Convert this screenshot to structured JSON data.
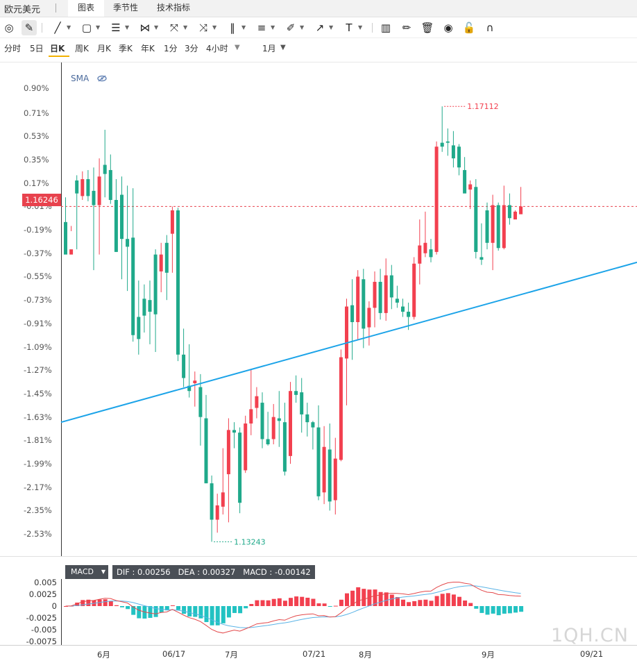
{
  "header": {
    "symbol": "欧元美元",
    "tabs": [
      {
        "label": "图表",
        "active": true
      },
      {
        "label": "季节性",
        "active": false
      },
      {
        "label": "技术指标",
        "active": false
      }
    ]
  },
  "toolbar": {
    "tools": [
      "magnet-icon",
      "pencil-icon",
      "line-icon",
      "rectangle-icon",
      "horizontal-lines-icon",
      "pattern-icon",
      "fork-icon",
      "cross-icon",
      "bars-icon",
      "level-icon",
      "brush-icon",
      "arrow-icon",
      "text-icon",
      "candles-icon",
      "pen-icon",
      "trash-icon",
      "eye-icon",
      "unlock-icon",
      "magnet-u-icon"
    ]
  },
  "periods": {
    "items": [
      "分时",
      "5日",
      "日K",
      "周K",
      "月K",
      "季K",
      "年K",
      "1分",
      "3分",
      "4小时"
    ],
    "active": "日K",
    "range": "1月"
  },
  "indicator": {
    "sma_label": "SMA"
  },
  "price": {
    "current": "1.16246",
    "high_label": "1.17112",
    "low_label": "1.13243"
  },
  "macd": {
    "label": "MACD",
    "dif": "DIF : 0.00256",
    "dea": "DEA : 0.00327",
    "macd": "MACD : -0.00142",
    "yticks": [
      "0.005",
      "0.0025",
      "0",
      "-0.0025",
      "-0.005",
      "-0.0075"
    ]
  },
  "watermark": "1QH.CN",
  "colors": {
    "up": "#f2404f",
    "down": "#1fa98a",
    "trendline": "#1ba3e8",
    "dif": "#e3484a",
    "dea": "#5ab3e6",
    "price_line": "#e8424d"
  },
  "chart_data": {
    "type": "candlestick",
    "y_ticks": [
      "0.90%",
      "0.71%",
      "0.53%",
      "0.35%",
      "0.17%",
      "-0.01%",
      "-0.19%",
      "-0.37%",
      "-0.55%",
      "-0.73%",
      "-0.91%",
      "-1.09%",
      "-1.27%",
      "-1.45%",
      "-1.63%",
      "-1.81%",
      "-1.99%",
      "-2.17%",
      "-2.35%",
      "-2.53%"
    ],
    "x_ticks": [
      "6月",
      "06/17",
      "7月",
      "07/21",
      "8月",
      "9月",
      "09/21"
    ],
    "reference_price": 1.16246,
    "ylim_percent": [
      -2.71,
      1.06
    ],
    "candles": [
      [
        -0.13,
        -0.38,
        0.06,
        -0.27
      ],
      [
        -0.38,
        -0.34,
        -0.2,
        -0.16
      ],
      [
        0.19,
        0.09,
        0.23,
        -0.34
      ],
      [
        0.07,
        0.2,
        0.26,
        0.04
      ],
      [
        0.2,
        0.07,
        0.27,
        0.03
      ],
      [
        0.11,
        0.0,
        0.29,
        -0.5
      ],
      [
        0.0,
        0.22,
        0.36,
        -0.38
      ],
      [
        0.31,
        0.24,
        0.58,
        0.06
      ],
      [
        0.27,
        0.04,
        0.39,
        0.01
      ],
      [
        0.04,
        -0.36,
        0.2,
        -0.36
      ],
      [
        0.08,
        -0.26,
        0.22,
        -0.57
      ],
      [
        -0.26,
        -0.32,
        0.15,
        -0.66
      ],
      [
        -0.25,
        -1.0,
        0.13,
        -1.05
      ],
      [
        -0.86,
        -1.03,
        -0.58,
        -1.15
      ],
      [
        -0.72,
        -0.85,
        -0.61,
        -0.98
      ],
      [
        -0.73,
        -0.82,
        -0.58,
        -1.07
      ],
      [
        -0.38,
        -0.84,
        -0.34,
        -1.13
      ],
      [
        -0.51,
        -0.38,
        -0.29,
        -0.67
      ],
      [
        -0.29,
        -0.52,
        -0.23,
        -0.73
      ],
      [
        -0.22,
        -0.04,
        -0.01,
        -0.52
      ],
      [
        -0.04,
        -1.15,
        -0.02,
        -1.2
      ],
      [
        -1.15,
        -1.33,
        -0.95,
        -1.4
      ],
      [
        -1.39,
        -1.43,
        -1.07,
        -1.48
      ],
      [
        -1.37,
        -1.35,
        -1.28,
        -1.55
      ],
      [
        -1.4,
        -1.63,
        -1.3,
        -1.85
      ],
      [
        -1.64,
        -2.14,
        -1.46,
        -2.14
      ],
      [
        -2.14,
        -2.42,
        -2.08,
        -2.59
      ],
      [
        -2.42,
        -2.31,
        -2.22,
        -2.52
      ],
      [
        -2.32,
        -2.21,
        -1.87,
        -2.38
      ],
      [
        -2.07,
        -1.73,
        -1.64,
        -2.44
      ],
      [
        -1.73,
        -1.75,
        -1.67,
        -1.87
      ],
      [
        -1.75,
        -2.29,
        -1.71,
        -2.37
      ],
      [
        -2.04,
        -1.68,
        -1.62,
        -2.06
      ],
      [
        -1.68,
        -1.57,
        -1.26,
        -1.77
      ],
      [
        -1.56,
        -1.47,
        -1.4,
        -1.64
      ],
      [
        -1.52,
        -1.8,
        -1.44,
        -1.87
      ],
      [
        -1.8,
        -1.84,
        -1.59,
        -1.85
      ],
      [
        -1.8,
        -1.63,
        -1.53,
        -1.84
      ],
      [
        -1.64,
        -1.66,
        -1.43,
        -1.86
      ],
      [
        -1.67,
        -2.05,
        -1.52,
        -2.08
      ],
      [
        -1.93,
        -1.43,
        -1.36,
        -1.99
      ],
      [
        -1.43,
        -1.46,
        -1.31,
        -1.52
      ],
      [
        -1.44,
        -1.61,
        -1.33,
        -1.75
      ],
      [
        -1.61,
        -1.67,
        -1.52,
        -1.78
      ],
      [
        -1.67,
        -1.71,
        -1.66,
        -1.88
      ],
      [
        -1.71,
        -2.24,
        -1.54,
        -2.27
      ],
      [
        -2.21,
        -1.86,
        -1.7,
        -2.3
      ],
      [
        -1.88,
        -2.28,
        -1.68,
        -2.35
      ],
      [
        -2.27,
        -1.95,
        -1.79,
        -2.38
      ],
      [
        -1.96,
        -1.17,
        -1.11,
        -1.97
      ],
      [
        -1.18,
        -0.78,
        -0.72,
        -1.54
      ],
      [
        -0.77,
        -0.9,
        -0.57,
        -1.19
      ],
      [
        -0.9,
        -0.55,
        -0.5,
        -1.04
      ],
      [
        -0.57,
        -0.95,
        -0.49,
        -1.1
      ],
      [
        -0.94,
        -0.79,
        -0.74,
        -1.08
      ],
      [
        -0.79,
        -0.59,
        -0.51,
        -0.94
      ],
      [
        -0.59,
        -0.83,
        -0.49,
        -0.88
      ],
      [
        -0.83,
        -0.54,
        -0.41,
        -0.89
      ],
      [
        -0.54,
        -0.71,
        -0.46,
        -0.8
      ],
      [
        -0.72,
        -0.75,
        -0.62,
        -0.79
      ],
      [
        -0.78,
        -0.82,
        -0.72,
        -0.86
      ],
      [
        -0.82,
        -0.86,
        -0.75,
        -0.96
      ],
      [
        -0.86,
        -0.45,
        -0.4,
        -0.88
      ],
      [
        -0.45,
        -0.31,
        -0.11,
        -0.61
      ],
      [
        -0.37,
        -0.29,
        -0.05,
        -0.4
      ],
      [
        -0.34,
        -0.4,
        -0.26,
        -0.44
      ],
      [
        -0.36,
        0.45,
        0.49,
        -0.38
      ],
      [
        0.48,
        0.45,
        0.76,
        0.41
      ],
      [
        0.49,
        0.48,
        0.59,
        0.38
      ],
      [
        0.46,
        0.36,
        0.57,
        0.29
      ],
      [
        0.45,
        0.29,
        0.47,
        0.23
      ],
      [
        0.27,
        0.09,
        0.37,
        0.13
      ],
      [
        0.12,
        0.16,
        0.19,
        -0.03
      ],
      [
        0.14,
        -0.36,
        0.2,
        -0.41
      ],
      [
        -0.4,
        -0.42,
        -0.14,
        -0.46
      ],
      [
        -0.04,
        -0.29,
        0.02,
        -0.34
      ],
      [
        -0.29,
        0.0,
        0.08,
        -0.5
      ],
      [
        0.0,
        -0.33,
        0.02,
        -0.35
      ],
      [
        -0.33,
        0.0,
        0.15,
        -0.34
      ],
      [
        0.0,
        -0.1,
        0.09,
        -0.15
      ],
      [
        -0.11,
        -0.05,
        -0.04,
        -0.1
      ],
      [
        -0.07,
        -0.01,
        0.14,
        -0.06
      ]
    ],
    "trendline_percent": [
      [
        -1.67
      ],
      [
        -0.44
      ]
    ],
    "macd_series": {
      "dif_start": -0.0015,
      "dif_end": 0.0026,
      "dea_start": -0.0015,
      "dea_end": 0.0033
    }
  }
}
